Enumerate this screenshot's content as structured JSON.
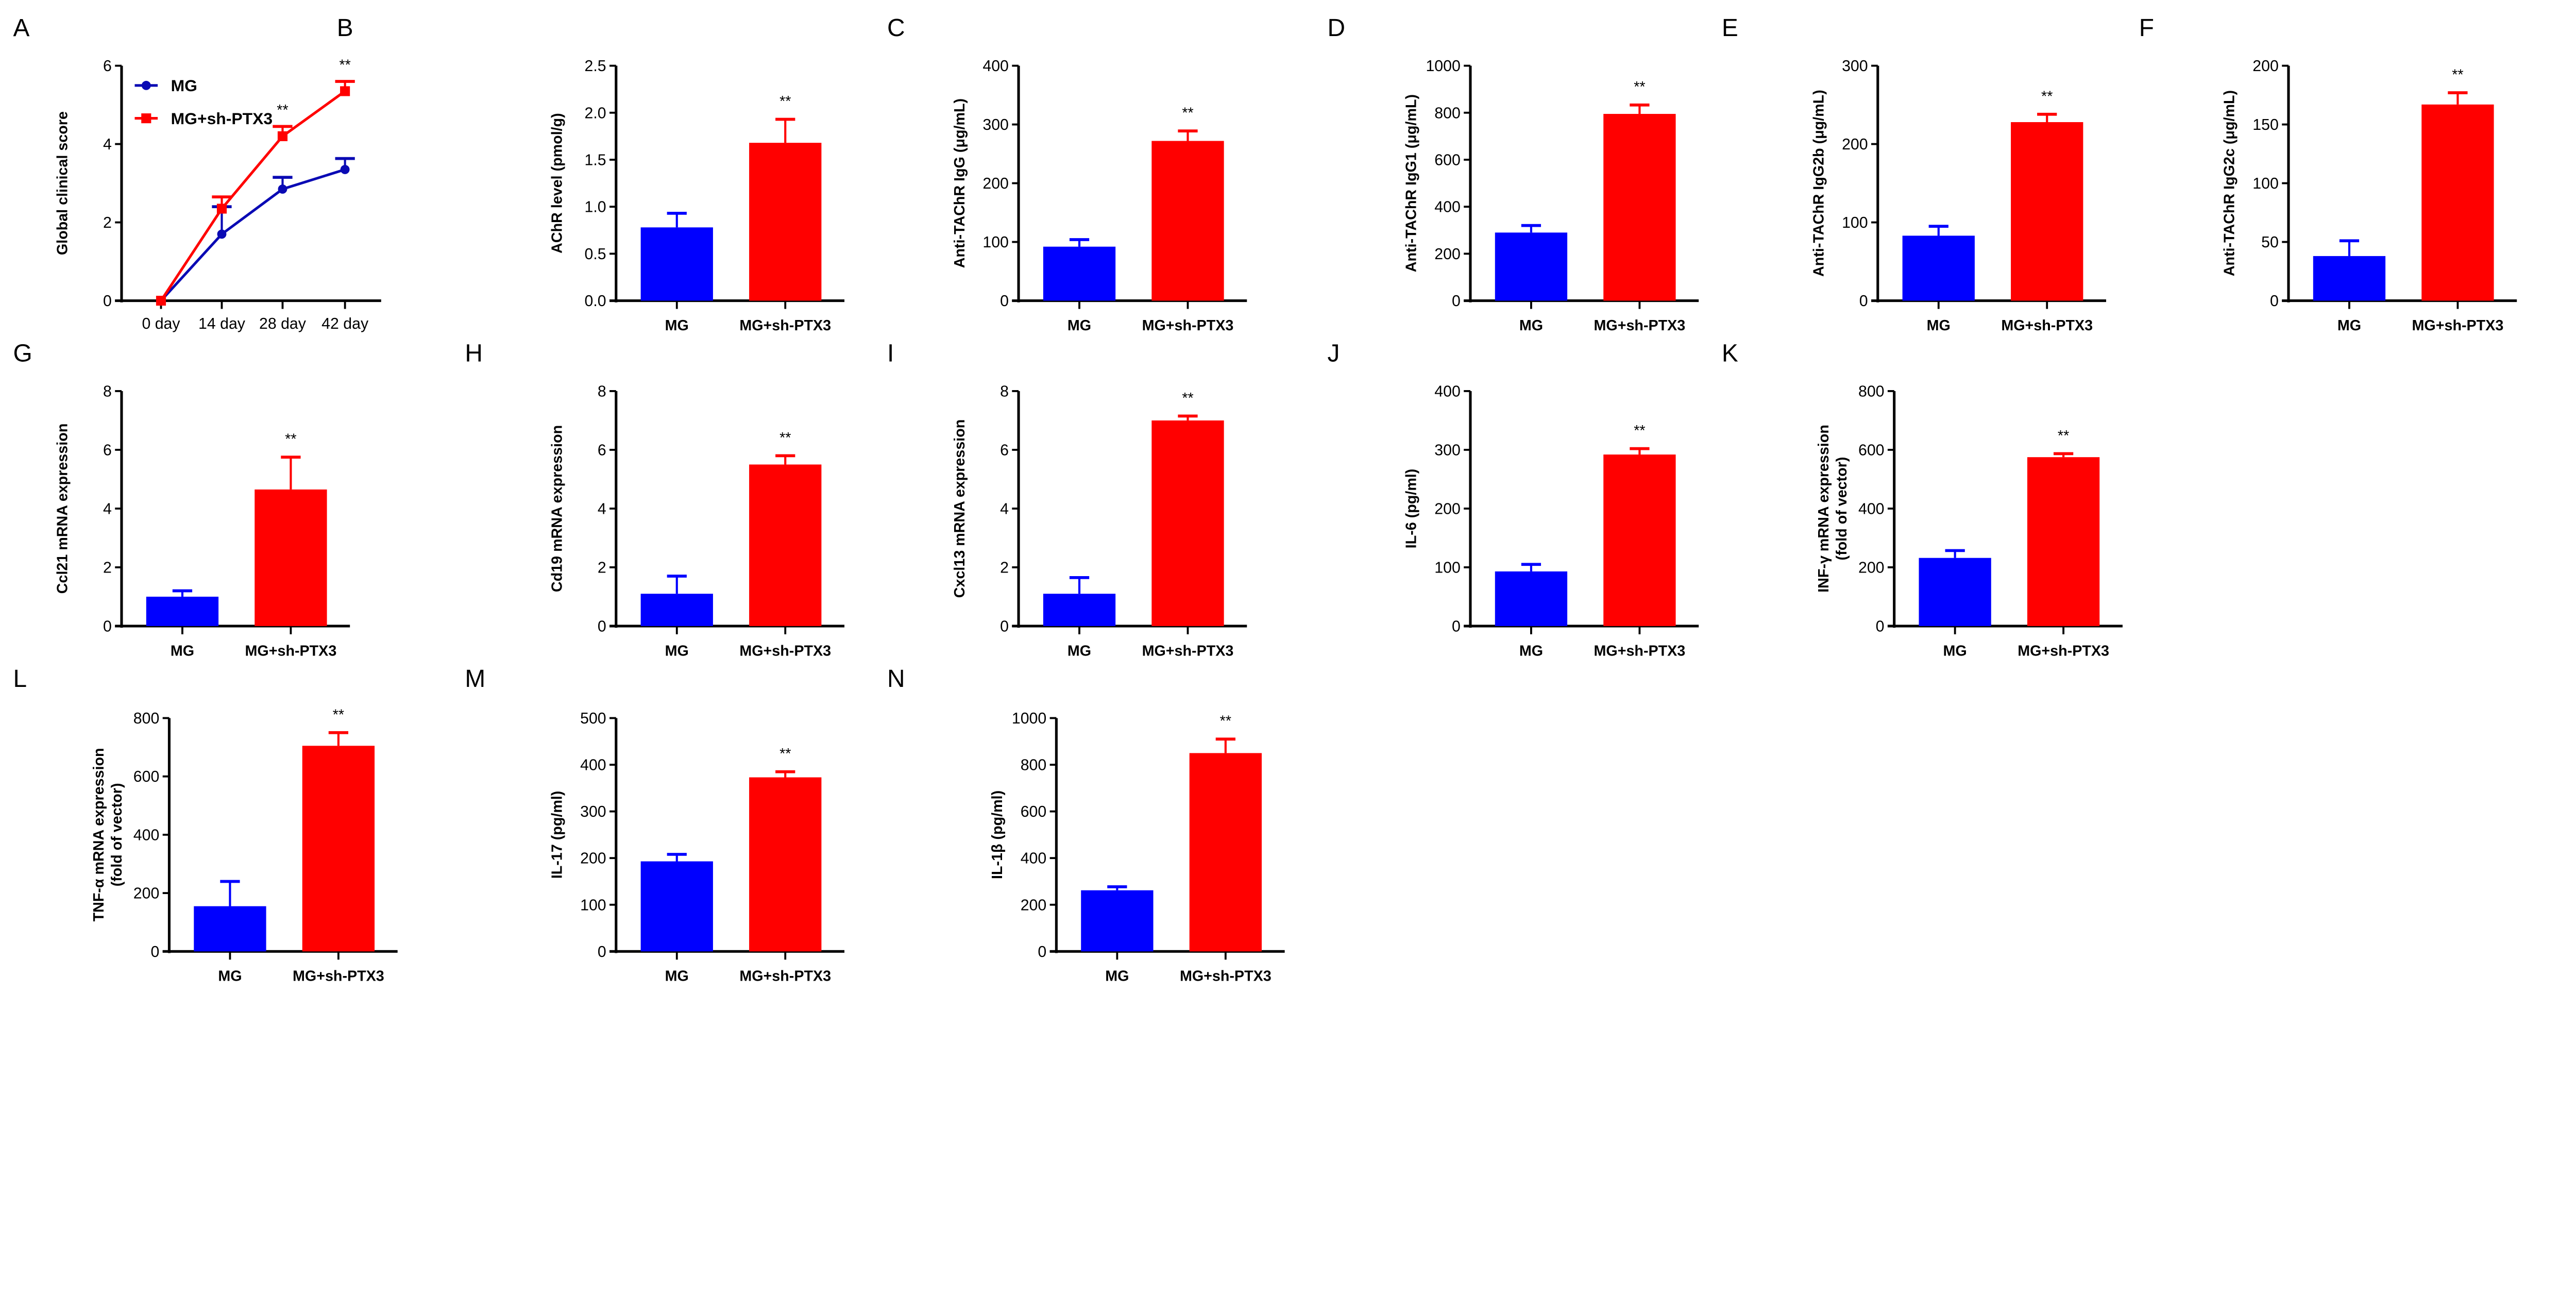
{
  "colors": {
    "MG": "#0000ff",
    "MG+sh-PTX3": "#ff0000",
    "line_MG": "#0a0ab4"
  },
  "chart_data": [
    {
      "panel": "A",
      "type": "line",
      "ylabel": "Global clinical score",
      "categories": [
        "0 day",
        "14 day",
        "28 day",
        "42 day"
      ],
      "ylim": [
        0,
        6
      ],
      "yticks": [
        "0",
        "2",
        "4",
        "6"
      ],
      "legend": "top-left",
      "series": [
        {
          "name": "MG",
          "values": [
            0,
            1.7,
            2.85,
            3.35
          ],
          "errors": [
            0,
            0.7,
            0.3,
            0.28
          ]
        },
        {
          "name": "MG+sh-PTX3",
          "values": [
            0,
            2.35,
            4.2,
            5.35
          ],
          "errors": [
            0,
            0.3,
            0.25,
            0.25
          ]
        }
      ],
      "annotations": [
        "",
        "",
        "**",
        "**"
      ]
    },
    {
      "panel": "B",
      "type": "bar",
      "ylabel": "AChR level (pmol/g)",
      "categories": [
        "MG",
        "MG+sh-PTX3"
      ],
      "values": [
        0.78,
        1.68
      ],
      "errors": [
        0.15,
        0.25
      ],
      "ylim": [
        0,
        2.5
      ],
      "yticks": [
        "0.0",
        "0.5",
        "1.0",
        "1.5",
        "2.0",
        "2.5"
      ],
      "annotation": "**"
    },
    {
      "panel": "C",
      "type": "bar",
      "ylabel": "Anti-TAChR IgG (μg/mL)",
      "categories": [
        "MG",
        "MG+sh-PTX3"
      ],
      "values": [
        92,
        272
      ],
      "errors": [
        12,
        17
      ],
      "ylim": [
        0,
        400
      ],
      "yticks": [
        "0",
        "100",
        "200",
        "300",
        "400"
      ],
      "annotation": "**"
    },
    {
      "panel": "D",
      "type": "bar",
      "ylabel": "Anti-TAChR IgG1 (μg/mL)",
      "categories": [
        "MG",
        "MG+sh-PTX3"
      ],
      "values": [
        290,
        795
      ],
      "errors": [
        30,
        38
      ],
      "ylim": [
        0,
        1000
      ],
      "yticks": [
        "0",
        "200",
        "400",
        "600",
        "800",
        "1000"
      ],
      "annotation": "**"
    },
    {
      "panel": "E",
      "type": "bar",
      "ylabel": "Anti-TAChR IgG2b (μg/mL)",
      "categories": [
        "MG",
        "MG+sh-PTX3"
      ],
      "values": [
        83,
        228
      ],
      "errors": [
        12,
        10
      ],
      "ylim": [
        0,
        300
      ],
      "yticks": [
        "0",
        "100",
        "200",
        "300"
      ],
      "annotation": "**"
    },
    {
      "panel": "F",
      "type": "bar",
      "ylabel": "Anti-TAChR IgG2c (μg/mL)",
      "categories": [
        "MG",
        "MG+sh-PTX3"
      ],
      "values": [
        38,
        167
      ],
      "errors": [
        13,
        10
      ],
      "ylim": [
        0,
        200
      ],
      "yticks": [
        "0",
        "50",
        "100",
        "150",
        "200"
      ],
      "annotation": "**"
    },
    {
      "panel": "G",
      "type": "bar",
      "ylabel": "Ccl21 mRNA expression",
      "categories": [
        "MG",
        "MG+sh-PTX3"
      ],
      "values": [
        1.0,
        4.65
      ],
      "errors": [
        0.2,
        1.1
      ],
      "ylim": [
        0,
        8
      ],
      "yticks": [
        "0",
        "2",
        "4",
        "6",
        "8"
      ],
      "annotation": "**"
    },
    {
      "panel": "H",
      "type": "bar",
      "ylabel": "Cd19 mRNA expression",
      "categories": [
        "MG",
        "MG+sh-PTX3"
      ],
      "values": [
        1.1,
        5.5
      ],
      "errors": [
        0.6,
        0.3
      ],
      "ylim": [
        0,
        8
      ],
      "yticks": [
        "0",
        "2",
        "4",
        "6",
        "8"
      ],
      "annotation": "**"
    },
    {
      "panel": "I",
      "type": "bar",
      "ylabel": "Cxcl13 mRNA expression",
      "categories": [
        "MG",
        "MG+sh-PTX3"
      ],
      "values": [
        1.1,
        7.0
      ],
      "errors": [
        0.55,
        0.15
      ],
      "ylim": [
        0,
        8
      ],
      "yticks": [
        "0",
        "2",
        "4",
        "6",
        "8"
      ],
      "annotation": "**"
    },
    {
      "panel": "J",
      "type": "bar",
      "ylabel": "IL-6 (pg/ml)",
      "categories": [
        "MG",
        "MG+sh-PTX3"
      ],
      "values": [
        93,
        292
      ],
      "errors": [
        12,
        10
      ],
      "ylim": [
        0,
        400
      ],
      "yticks": [
        "0",
        "100",
        "200",
        "300",
        "400"
      ],
      "annotation": "**"
    },
    {
      "panel": "K",
      "type": "bar",
      "ylabel": "INF-γ mRNA expression",
      "ylabel2": "(fold of vector)",
      "categories": [
        "MG",
        "MG+sh-PTX3"
      ],
      "values": [
        232,
        575
      ],
      "errors": [
        25,
        12
      ],
      "ylim": [
        0,
        800
      ],
      "yticks": [
        "0",
        "200",
        "400",
        "600",
        "800"
      ],
      "annotation": "**"
    },
    {
      "panel": "L",
      "type": "bar",
      "ylabel": "TNF-α mRNA expression",
      "ylabel2": "(fold of vector)",
      "categories": [
        "MG",
        "MG+sh-PTX3"
      ],
      "values": [
        155,
        705
      ],
      "errors": [
        85,
        45
      ],
      "ylim": [
        0,
        800
      ],
      "yticks": [
        "0",
        "200",
        "400",
        "600",
        "800"
      ],
      "annotation": "**"
    },
    {
      "panel": "M",
      "type": "bar",
      "ylabel": "IL-17 (pg/ml)",
      "categories": [
        "MG",
        "MG+sh-PTX3"
      ],
      "values": [
        193,
        373
      ],
      "errors": [
        15,
        12
      ],
      "ylim": [
        0,
        500
      ],
      "yticks": [
        "0",
        "100",
        "200",
        "300",
        "400",
        "500"
      ],
      "annotation": "**"
    },
    {
      "panel": "N",
      "type": "bar",
      "ylabel": "IL-1β (pg/ml)",
      "categories": [
        "MG",
        "MG+sh-PTX3"
      ],
      "values": [
        262,
        850
      ],
      "errors": [
        15,
        60
      ],
      "ylim": [
        0,
        1000
      ],
      "yticks": [
        "0",
        "200",
        "400",
        "600",
        "800",
        "1000"
      ],
      "annotation": "**"
    }
  ]
}
